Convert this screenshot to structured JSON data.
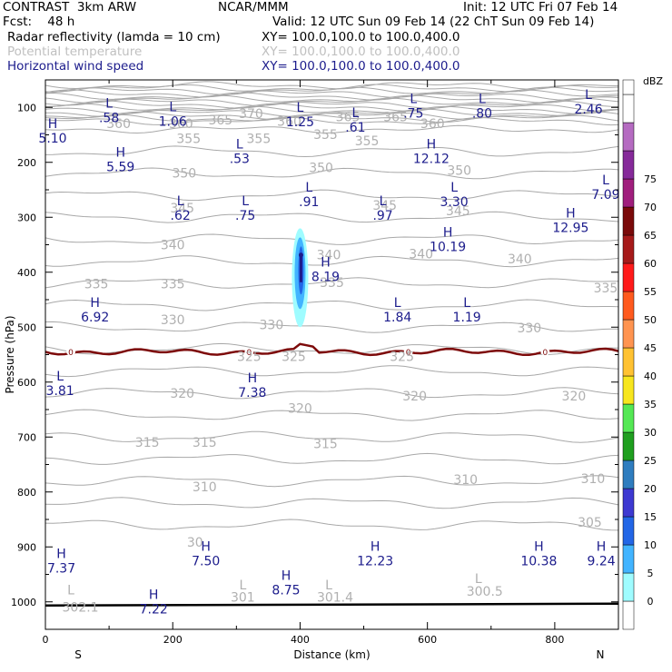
{
  "header": {
    "model": "CONTRAST  3km ARW",
    "org": "NCAR/MMM",
    "init": "Init: 12 UTC Fri 07 Feb 14",
    "fcst": "Fcst:    48 h",
    "valid": "Valid: 12 UTC Sun 09 Feb 14 (22 ChT Sun 09 Feb 14)"
  },
  "fields": [
    {
      "name": "Radar reflectivity (lamda = 10 cm)",
      "xy": "XY= 100.0,100.0 to 100.0,400.0",
      "color": "#000000"
    },
    {
      "name": "Potential temperature",
      "xy": "XY= 100.0,100.0 to 100.0,400.0",
      "color": "#c0c0c0"
    },
    {
      "name": "Horizontal wind speed",
      "xy": "XY= 100.0,100.0 to 100.0,400.0",
      "color": "#1c1c8c"
    }
  ],
  "chart_data": {
    "type": "cross-section",
    "xlabel": "Distance (km)",
    "ylabel": "Pressure (hPa)",
    "xlim": [
      0,
      900
    ],
    "ylim": [
      1050,
      50
    ],
    "xticks": [
      0,
      200,
      400,
      600,
      800
    ],
    "yticks": [
      100,
      200,
      300,
      400,
      500,
      600,
      700,
      800,
      900,
      1000
    ],
    "x_end_labels": {
      "left": "S",
      "right": "N"
    },
    "colorbar": {
      "unit": "dBZ",
      "ticks": [
        "0",
        "5",
        "10",
        "15",
        "20",
        "25",
        "30",
        "35",
        "40",
        "45",
        "50",
        "55",
        "60",
        "65",
        "70",
        "75"
      ],
      "colors": [
        "#ffffff",
        "#9ffcff",
        "#42b4ff",
        "#2266e6",
        "#3d39d1",
        "#2f7dbf",
        "#1f9f1f",
        "#54e854",
        "#f7e61e",
        "#ffc232",
        "#ff9450",
        "#ff5a1e",
        "#ff1a1a",
        "#a61a1a",
        "#7a0a0a",
        "#a01e7d",
        "#862a9a",
        "#b56bc1",
        "#ffffff"
      ]
    },
    "theta_labels": [
      {
        "text": "360",
        "x": 115,
        "p": 131
      },
      {
        "text": "360",
        "x": 213,
        "p": 131
      },
      {
        "text": "365",
        "x": 275,
        "p": 124
      },
      {
        "text": "370",
        "x": 323,
        "p": 113
      },
      {
        "text": "360",
        "x": 383,
        "p": 127
      },
      {
        "text": "365",
        "x": 475,
        "p": 119
      },
      {
        "text": "365",
        "x": 550,
        "p": 119
      },
      {
        "text": "360",
        "x": 608,
        "p": 131
      },
      {
        "text": "355",
        "x": 225,
        "p": 158
      },
      {
        "text": "355",
        "x": 335,
        "p": 158
      },
      {
        "text": "355",
        "x": 440,
        "p": 151
      },
      {
        "text": "355",
        "x": 505,
        "p": 162
      },
      {
        "text": "350",
        "x": 218,
        "p": 221
      },
      {
        "text": "350",
        "x": 433,
        "p": 211
      },
      {
        "text": "350",
        "x": 650,
        "p": 216
      },
      {
        "text": "345",
        "x": 215,
        "p": 285
      },
      {
        "text": "345",
        "x": 533,
        "p": 280
      },
      {
        "text": "345",
        "x": 648,
        "p": 290
      },
      {
        "text": "340",
        "x": 200,
        "p": 352
      },
      {
        "text": "340",
        "x": 445,
        "p": 370
      },
      {
        "text": "340",
        "x": 590,
        "p": 368
      },
      {
        "text": "340",
        "x": 745,
        "p": 377
      },
      {
        "text": "335",
        "x": 80,
        "p": 423
      },
      {
        "text": "335",
        "x": 200,
        "p": 423
      },
      {
        "text": "335",
        "x": 450,
        "p": 420
      },
      {
        "text": "335",
        "x": 880,
        "p": 430
      },
      {
        "text": "330",
        "x": 200,
        "p": 488
      },
      {
        "text": "330",
        "x": 355,
        "p": 497
      },
      {
        "text": "330",
        "x": 760,
        "p": 503
      },
      {
        "text": "325",
        "x": 320,
        "p": 555
      },
      {
        "text": "325",
        "x": 390,
        "p": 555
      },
      {
        "text": "325",
        "x": 560,
        "p": 555
      },
      {
        "text": "320",
        "x": 215,
        "p": 622
      },
      {
        "text": "320",
        "x": 400,
        "p": 649
      },
      {
        "text": "320",
        "x": 580,
        "p": 627
      },
      {
        "text": "320",
        "x": 830,
        "p": 627
      },
      {
        "text": "315",
        "x": 160,
        "p": 711
      },
      {
        "text": "315",
        "x": 250,
        "p": 711
      },
      {
        "text": "315",
        "x": 440,
        "p": 714
      },
      {
        "text": "310",
        "x": 250,
        "p": 792
      },
      {
        "text": "310",
        "x": 660,
        "p": 779
      },
      {
        "text": "310",
        "x": 860,
        "p": 777
      },
      {
        "text": "305",
        "x": 855,
        "p": 857
      },
      {
        "text": "30",
        "x": 235,
        "p": 893
      }
    ],
    "surface_theta_labels": [
      {
        "text": "L",
        "x": 40,
        "p": 980
      },
      {
        "text": "302.1",
        "x": 55,
        "p": 1011
      },
      {
        "text": "L",
        "x": 310,
        "p": 971
      },
      {
        "text": "301",
        "x": 310,
        "p": 993
      },
      {
        "text": "L",
        "x": 445,
        "p": 971
      },
      {
        "text": "301.4",
        "x": 455,
        "p": 993
      },
      {
        "text": "L",
        "x": 680,
        "p": 959
      },
      {
        "text": "300.5",
        "x": 690,
        "p": 982
      }
    ],
    "wind_extrema": [
      {
        "type": "L",
        "value": ".58",
        "x": 100,
        "p": 100
      },
      {
        "type": "L",
        "value": "1.06",
        "x": 200,
        "p": 107
      },
      {
        "type": "L",
        "value": "1.25",
        "x": 400,
        "p": 108
      },
      {
        "type": "L",
        "value": ".61",
        "x": 487,
        "p": 118
      },
      {
        "type": "L",
        "value": ".75",
        "x": 578,
        "p": 92
      },
      {
        "type": "L",
        "value": ".80",
        "x": 686,
        "p": 92
      },
      {
        "type": "L",
        "value": "2.46",
        "x": 853,
        "p": 85
      },
      {
        "type": "H",
        "value": "5.10",
        "x": 5,
        "p": 138
      },
      {
        "type": "H",
        "value": "5.59",
        "x": 118,
        "p": 190
      },
      {
        "type": "L",
        "value": ".53",
        "x": 305,
        "p": 175
      },
      {
        "type": "H",
        "value": "12.12",
        "x": 606,
        "p": 175
      },
      {
        "type": "L",
        "value": ".91",
        "x": 414,
        "p": 253
      },
      {
        "type": "L",
        "value": ".62",
        "x": 212,
        "p": 278
      },
      {
        "type": "L",
        "value": ".75",
        "x": 314,
        "p": 278
      },
      {
        "type": "L",
        "value": ".97",
        "x": 530,
        "p": 278
      },
      {
        "type": "L",
        "value": "3.30",
        "x": 642,
        "p": 253
      },
      {
        "type": "L",
        "value": "7.09",
        "x": 880,
        "p": 240
      },
      {
        "type": "H",
        "value": "12.95",
        "x": 825,
        "p": 300
      },
      {
        "type": "H",
        "value": "10.19",
        "x": 632,
        "p": 335
      },
      {
        "type": "H",
        "value": "8.19",
        "x": 440,
        "p": 390
      },
      {
        "type": "H",
        "value": "6.92",
        "x": 78,
        "p": 463
      },
      {
        "type": "L",
        "value": "1.84",
        "x": 553,
        "p": 463
      },
      {
        "type": "L",
        "value": "1.19",
        "x": 662,
        "p": 463
      },
      {
        "type": "L",
        "value": "3.81",
        "x": 23,
        "p": 597
      },
      {
        "type": "H",
        "value": "7.38",
        "x": 325,
        "p": 600
      },
      {
        "type": "H",
        "value": "7.37",
        "x": 25,
        "p": 920
      },
      {
        "type": "H",
        "value": "7.50",
        "x": 252,
        "p": 907
      },
      {
        "type": "H",
        "value": "12.23",
        "x": 518,
        "p": 907
      },
      {
        "type": "H",
        "value": "10.38",
        "x": 775,
        "p": 907
      },
      {
        "type": "H",
        "value": "9.24",
        "x": 873,
        "p": 907
      },
      {
        "type": "H",
        "value": "8.75",
        "x": 378,
        "p": 960
      },
      {
        "type": "H",
        "value": "7.22",
        "x": 170,
        "p": 995
      }
    ],
    "zero_markers": [
      {
        "text": "0",
        "x": 40
      },
      {
        "text": "0",
        "x": 320
      },
      {
        "text": "0",
        "x": 570
      },
      {
        "text": "0",
        "x": 785
      }
    ],
    "freezing_level_p": 545,
    "surface_p": 1005,
    "echo": {
      "x": 400,
      "p_top": 320,
      "p_bottom": 500
    }
  }
}
